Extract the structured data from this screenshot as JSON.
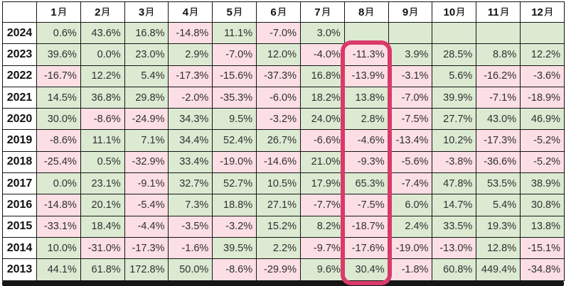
{
  "table": {
    "corner_label": "",
    "months": [
      "1月",
      "2月",
      "3月",
      "4月",
      "5月",
      "6月",
      "7月",
      "8月",
      "9月",
      "10月",
      "11月",
      "12月"
    ],
    "rows": [
      {
        "year": "2024",
        "values": [
          "0.6%",
          "43.6%",
          "16.8%",
          "-14.8%",
          "11.1%",
          "-7.0%",
          "3.0%",
          "",
          "",
          "",
          "",
          ""
        ]
      },
      {
        "year": "2023",
        "values": [
          "39.6%",
          "0.0%",
          "23.0%",
          "2.9%",
          "-7.0%",
          "12.0%",
          "-4.0%",
          "-11.3%",
          "3.9%",
          "28.5%",
          "8.8%",
          "12.2%"
        ]
      },
      {
        "year": "2022",
        "values": [
          "-16.7%",
          "12.2%",
          "5.4%",
          "-17.3%",
          "-15.6%",
          "-37.3%",
          "16.8%",
          "-13.9%",
          "-3.1%",
          "5.6%",
          "-16.2%",
          "-3.6%"
        ]
      },
      {
        "year": "2021",
        "values": [
          "14.5%",
          "36.8%",
          "29.8%",
          "-2.0%",
          "-35.3%",
          "-6.0%",
          "18.2%",
          "13.8%",
          "-7.0%",
          "39.9%",
          "-7.1%",
          "-18.9%"
        ]
      },
      {
        "year": "2020",
        "values": [
          "30.0%",
          "-8.6%",
          "-24.9%",
          "34.3%",
          "9.5%",
          "-3.2%",
          "24.0%",
          "2.8%",
          "-7.5%",
          "27.7%",
          "43.0%",
          "46.9%"
        ]
      },
      {
        "year": "2019",
        "values": [
          "-8.6%",
          "11.1%",
          "7.1%",
          "34.4%",
          "52.4%",
          "26.7%",
          "-6.6%",
          "-4.6%",
          "-13.4%",
          "10.2%",
          "-17.3%",
          "-5.2%"
        ]
      },
      {
        "year": "2018",
        "values": [
          "-25.4%",
          "0.5%",
          "-32.9%",
          "33.4%",
          "-19.0%",
          "-14.6%",
          "21.0%",
          "-9.3%",
          "-5.6%",
          "-3.8%",
          "-36.6%",
          "-5.2%"
        ]
      },
      {
        "year": "2017",
        "values": [
          "0.0%",
          "23.1%",
          "-9.1%",
          "32.7%",
          "52.7%",
          "10.5%",
          "17.9%",
          "65.3%",
          "-7.4%",
          "47.8%",
          "53.5%",
          "38.9%"
        ]
      },
      {
        "year": "2016",
        "values": [
          "-14.8%",
          "20.1%",
          "-5.4%",
          "7.3%",
          "18.8%",
          "27.1%",
          "-7.7%",
          "-7.5%",
          "6.0%",
          "14.7%",
          "5.4%",
          "30.8%"
        ]
      },
      {
        "year": "2015",
        "values": [
          "-33.1%",
          "18.4%",
          "-4.4%",
          "-3.5%",
          "-3.2%",
          "15.2%",
          "8.2%",
          "-18.7%",
          "2.4%",
          "33.5%",
          "19.3%",
          "13.8%"
        ]
      },
      {
        "year": "2014",
        "values": [
          "10.0%",
          "-31.0%",
          "-17.3%",
          "-1.6%",
          "39.5%",
          "2.2%",
          "-9.7%",
          "-17.6%",
          "-19.0%",
          "-13.0%",
          "12.8%",
          "-15.1%"
        ]
      },
      {
        "year": "2013",
        "values": [
          "44.1%",
          "61.8%",
          "172.8%",
          "50.0%",
          "-8.6%",
          "-29.9%",
          "9.6%",
          "30.4%",
          "-1.8%",
          "60.8%",
          "449.4%",
          "-34.8%"
        ]
      }
    ],
    "highlight": {
      "column": "8月",
      "from_year": "2023",
      "to_year": "2013"
    }
  },
  "colors": {
    "positive_bg": "#dcead2",
    "negative_bg": "#fcdfe5",
    "highlight_border": "#d93a6a",
    "grid": "#141414",
    "bottom_bar": "#161616"
  },
  "chart_data": {
    "type": "heatmap",
    "x_labels": [
      "1月",
      "2月",
      "3月",
      "4月",
      "5月",
      "6月",
      "7月",
      "8月",
      "9月",
      "10月",
      "11月",
      "12月"
    ],
    "y_labels": [
      "2024",
      "2023",
      "2022",
      "2021",
      "2020",
      "2019",
      "2018",
      "2017",
      "2016",
      "2015",
      "2014",
      "2013"
    ],
    "units": "%",
    "values": [
      [
        0.6,
        43.6,
        16.8,
        -14.8,
        11.1,
        -7.0,
        3.0,
        null,
        null,
        null,
        null,
        null
      ],
      [
        39.6,
        0.0,
        23.0,
        2.9,
        -7.0,
        12.0,
        -4.0,
        -11.3,
        3.9,
        28.5,
        8.8,
        12.2
      ],
      [
        -16.7,
        12.2,
        5.4,
        -17.3,
        -15.6,
        -37.3,
        16.8,
        -13.9,
        -3.1,
        5.6,
        -16.2,
        -3.6
      ],
      [
        14.5,
        36.8,
        29.8,
        -2.0,
        -35.3,
        -6.0,
        18.2,
        13.8,
        -7.0,
        39.9,
        -7.1,
        -18.9
      ],
      [
        30.0,
        -8.6,
        -24.9,
        34.3,
        9.5,
        -3.2,
        24.0,
        2.8,
        -7.5,
        27.7,
        43.0,
        46.9
      ],
      [
        -8.6,
        11.1,
        7.1,
        34.4,
        52.4,
        26.7,
        -6.6,
        -4.6,
        -13.4,
        10.2,
        -17.3,
        -5.2
      ],
      [
        -25.4,
        0.5,
        -32.9,
        33.4,
        -19.0,
        -14.6,
        21.0,
        -9.3,
        -5.6,
        -3.8,
        -36.6,
        -5.2
      ],
      [
        0.0,
        23.1,
        -9.1,
        32.7,
        52.7,
        10.5,
        17.9,
        65.3,
        -7.4,
        47.8,
        53.5,
        38.9
      ],
      [
        -14.8,
        20.1,
        -5.4,
        7.3,
        18.8,
        27.1,
        -7.7,
        -7.5,
        6.0,
        14.7,
        5.4,
        30.8
      ],
      [
        -33.1,
        18.4,
        -4.4,
        -3.5,
        -3.2,
        15.2,
        8.2,
        -18.7,
        2.4,
        33.5,
        19.3,
        13.8
      ],
      [
        10.0,
        -31.0,
        -17.3,
        -1.6,
        39.5,
        2.2,
        -9.7,
        -17.6,
        -19.0,
        -13.0,
        12.8,
        -15.1
      ],
      [
        44.1,
        61.8,
        172.8,
        50.0,
        -8.6,
        -29.9,
        9.6,
        30.4,
        -1.8,
        60.8,
        449.4,
        -34.8
      ]
    ],
    "color_rule": "value >= 0 -> green cell, value < 0 -> pink cell, empty -> green cell",
    "annotation": "8月 (August) column outlined with thick rounded crimson rectangle from 2023 row through 2013 row",
    "legend_position": "none",
    "grid": true
  }
}
